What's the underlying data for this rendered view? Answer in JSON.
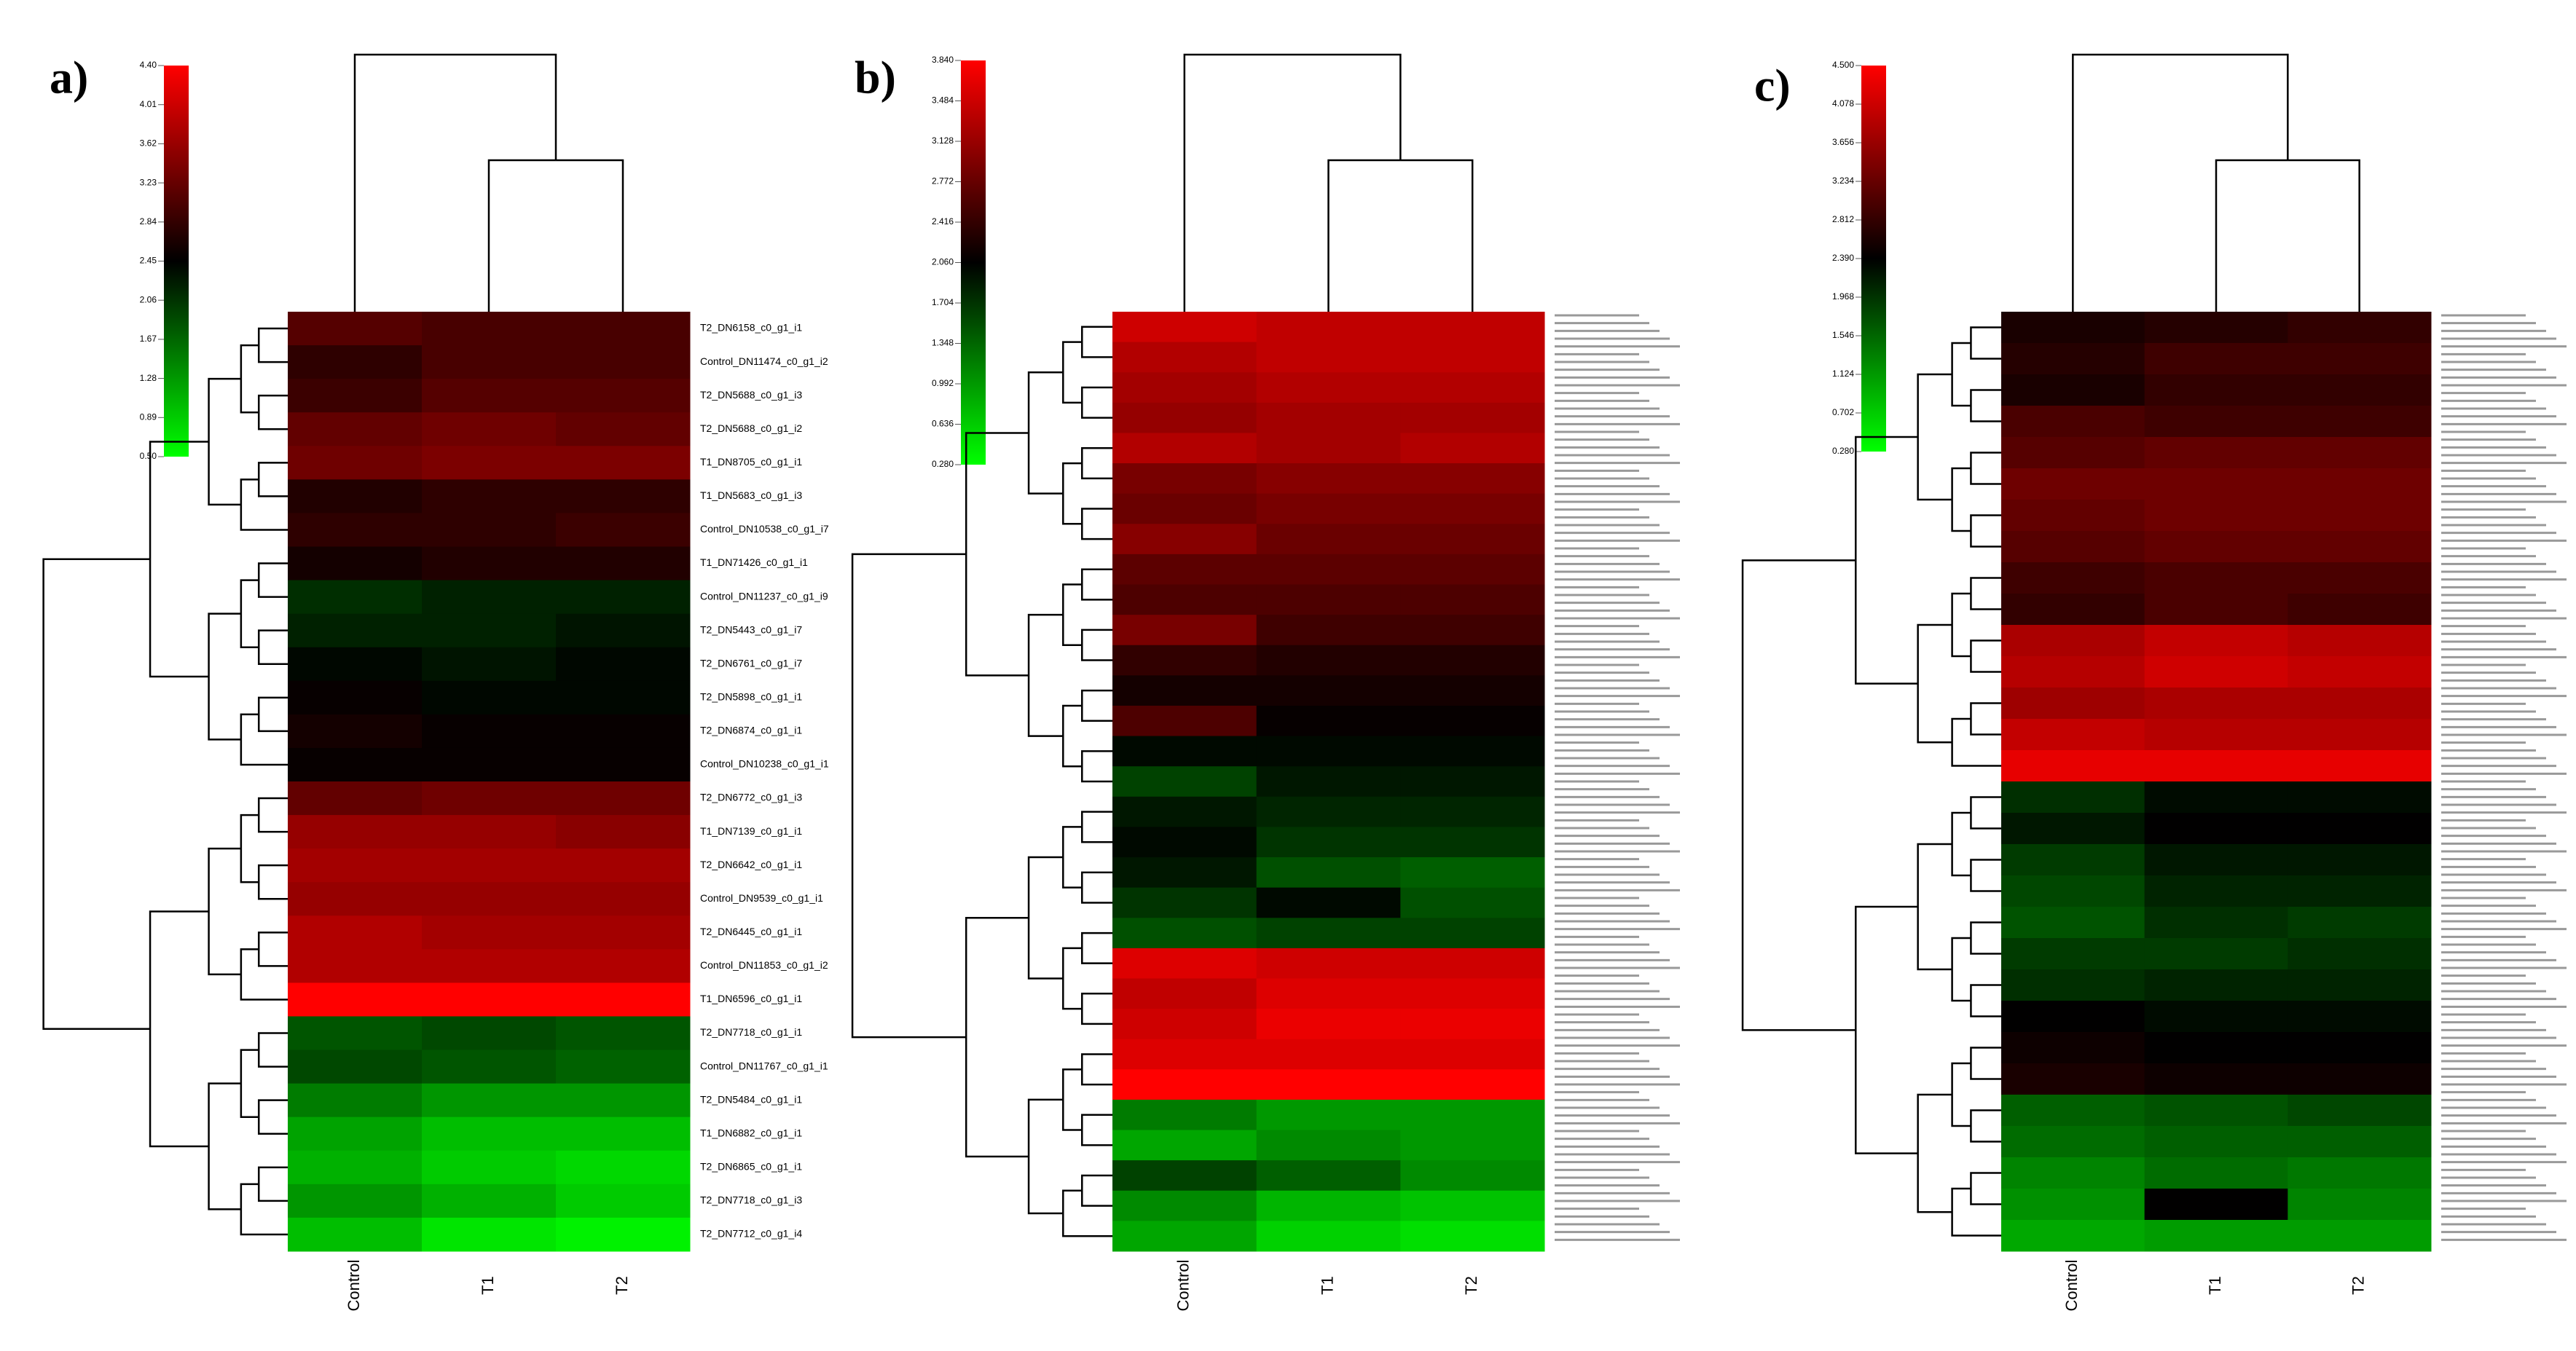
{
  "chart_data": [
    {
      "type": "heatmap",
      "panel_label": "a)",
      "columns": [
        "Control",
        "T1",
        "T2"
      ],
      "rows": [
        "T2_DN6158_c0_g1_i1",
        "Control_DN11474_c0_g1_i2",
        "T2_DN5688_c0_g1_i3",
        "T2_DN5688_c0_g1_i2",
        "T1_DN8705_c0_g1_i1",
        "T1_DN5683_c0_g1_i3",
        "Control_DN10538_c0_g1_i7",
        "T1_DN71426_c0_g1_i1",
        "Control_DN11237_c0_g1_i9",
        "T2_DN5443_c0_g1_i7",
        "T2_DN6761_c0_g1_i7",
        "T2_DN5898_c0_g1_i1",
        "T2_DN6874_c0_g1_i1",
        "Control_DN10238_c0_g1_i1",
        "T2_DN6772_c0_g1_i3",
        "T1_DN7139_c0_g1_i1",
        "T2_DN6642_c0_g1_i1",
        "Control_DN9539_c0_g1_i1",
        "T2_DN6445_c0_g1_i1",
        "Control_DN11853_c0_g1_i2",
        "T1_DN6596_c0_g1_i1",
        "T2_DN7718_c0_g1_i1",
        "Control_DN11767_c0_g1_i1",
        "T2_DN5484_c0_g1_i1",
        "T1_DN6882_c0_g1_i1",
        "T2_DN6865_c0_g1_i1",
        "T2_DN7718_c0_g1_i3",
        "T2_DN7712_c0_g1_i4"
      ],
      "values": [
        [
          3.1,
          3.0,
          3.0
        ],
        [
          2.8,
          3.0,
          3.0
        ],
        [
          2.9,
          3.1,
          3.1
        ],
        [
          3.2,
          3.3,
          3.2
        ],
        [
          3.3,
          3.4,
          3.4
        ],
        [
          2.7,
          2.8,
          2.8
        ],
        [
          2.8,
          2.8,
          2.9
        ],
        [
          2.6,
          2.7,
          2.7
        ],
        [
          2.1,
          2.2,
          2.2
        ],
        [
          2.2,
          2.2,
          2.3
        ],
        [
          2.4,
          2.3,
          2.4
        ],
        [
          2.5,
          2.4,
          2.4
        ],
        [
          2.6,
          2.5,
          2.5
        ],
        [
          2.5,
          2.5,
          2.5
        ],
        [
          3.2,
          3.3,
          3.3
        ],
        [
          3.6,
          3.6,
          3.5
        ],
        [
          3.7,
          3.7,
          3.7
        ],
        [
          3.6,
          3.6,
          3.6
        ],
        [
          3.8,
          3.7,
          3.7
        ],
        [
          3.8,
          3.8,
          3.8
        ],
        [
          4.4,
          4.4,
          4.4
        ],
        [
          1.8,
          1.9,
          1.8
        ],
        [
          1.9,
          1.8,
          1.7
        ],
        [
          1.5,
          1.3,
          1.3
        ],
        [
          1.2,
          1.0,
          1.0
        ],
        [
          1.1,
          0.9,
          0.8
        ],
        [
          1.3,
          1.1,
          0.9
        ],
        [
          1.0,
          0.7,
          0.6
        ]
      ],
      "clim": [
        0.5,
        4.4
      ],
      "cticks": [
        {
          "value": 0.5,
          "label": "0.50"
        },
        {
          "value": 0.89,
          "label": "0.89"
        },
        {
          "value": 1.28,
          "label": "1.28"
        },
        {
          "value": 1.67,
          "label": "1.67"
        },
        {
          "value": 2.06,
          "label": "2.06"
        },
        {
          "value": 2.45,
          "label": "2.45"
        },
        {
          "value": 2.84,
          "label": "2.84"
        },
        {
          "value": 3.23,
          "label": "3.23"
        },
        {
          "value": 3.62,
          "label": "3.62"
        },
        {
          "value": 4.01,
          "label": "4.01"
        },
        {
          "value": 4.4,
          "label": "4.40"
        }
      ]
    },
    {
      "type": "heatmap",
      "panel_label": "b)",
      "columns": [
        "Control",
        "T1",
        "T2"
      ],
      "values": [
        [
          3.5,
          3.4,
          3.4
        ],
        [
          3.3,
          3.4,
          3.4
        ],
        [
          3.2,
          3.3,
          3.3
        ],
        [
          3.1,
          3.2,
          3.2
        ],
        [
          3.3,
          3.2,
          3.3
        ],
        [
          2.9,
          3.0,
          3.0
        ],
        [
          2.8,
          2.9,
          2.9
        ],
        [
          3.0,
          2.8,
          2.8
        ],
        [
          2.7,
          2.7,
          2.7
        ],
        [
          2.6,
          2.6,
          2.6
        ],
        [
          2.9,
          2.5,
          2.5
        ],
        [
          2.4,
          2.3,
          2.3
        ],
        [
          2.2,
          2.2,
          2.2
        ],
        [
          2.6,
          2.1,
          2.1
        ],
        [
          2.0,
          2.0,
          2.0
        ],
        [
          1.6,
          1.9,
          1.9
        ],
        [
          1.9,
          1.8,
          1.8
        ],
        [
          2.0,
          1.7,
          1.7
        ],
        [
          1.9,
          1.5,
          1.4
        ],
        [
          1.7,
          2.0,
          1.5
        ],
        [
          1.5,
          1.6,
          1.6
        ],
        [
          3.6,
          3.5,
          3.5
        ],
        [
          3.4,
          3.6,
          3.6
        ],
        [
          3.5,
          3.7,
          3.7
        ],
        [
          3.6,
          3.6,
          3.6
        ],
        [
          3.84,
          3.84,
          3.84
        ],
        [
          1.2,
          1.0,
          1.0
        ],
        [
          0.9,
          1.1,
          1.0
        ],
        [
          1.6,
          1.4,
          1.1
        ],
        [
          1.1,
          0.8,
          0.7
        ],
        [
          0.9,
          0.6,
          0.5
        ]
      ],
      "clim": [
        0.28,
        3.84
      ],
      "cticks": [
        {
          "value": 0.28,
          "label": "0.280"
        },
        {
          "value": 0.636,
          "label": "0.636"
        },
        {
          "value": 0.992,
          "label": "0.992"
        },
        {
          "value": 1.348,
          "label": "1.348"
        },
        {
          "value": 1.704,
          "label": "1.704"
        },
        {
          "value": 2.06,
          "label": "2.060"
        },
        {
          "value": 2.416,
          "label": "2.416"
        },
        {
          "value": 2.772,
          "label": "2.772"
        },
        {
          "value": 3.128,
          "label": "3.128"
        },
        {
          "value": 3.484,
          "label": "3.484"
        },
        {
          "value": 3.84,
          "label": "3.840"
        }
      ]
    },
    {
      "type": "heatmap",
      "panel_label": "c)",
      "columns": [
        "Control",
        "T1",
        "T2"
      ],
      "values": [
        [
          2.6,
          2.7,
          2.8
        ],
        [
          2.7,
          2.9,
          2.9
        ],
        [
          2.6,
          2.8,
          2.8
        ],
        [
          3.0,
          2.9,
          2.9
        ],
        [
          3.1,
          3.2,
          3.2
        ],
        [
          3.3,
          3.3,
          3.3
        ],
        [
          3.2,
          3.3,
          3.3
        ],
        [
          3.1,
          3.2,
          3.2
        ],
        [
          2.9,
          3.0,
          3.0
        ],
        [
          2.8,
          3.0,
          2.9
        ],
        [
          3.8,
          4.0,
          3.9
        ],
        [
          3.9,
          4.1,
          4.0
        ],
        [
          3.7,
          3.8,
          3.8
        ],
        [
          4.0,
          3.9,
          3.9
        ],
        [
          4.3,
          4.3,
          4.3
        ],
        [
          2.0,
          2.3,
          2.3
        ],
        [
          2.2,
          2.4,
          2.4
        ],
        [
          1.9,
          2.2,
          2.2
        ],
        [
          1.8,
          2.1,
          2.1
        ],
        [
          1.7,
          2.0,
          1.9
        ],
        [
          1.9,
          1.9,
          2.0
        ],
        [
          2.0,
          2.1,
          2.1
        ],
        [
          2.4,
          2.3,
          2.3
        ],
        [
          2.5,
          2.4,
          2.4
        ],
        [
          2.6,
          2.5,
          2.5
        ],
        [
          1.6,
          1.7,
          1.8
        ],
        [
          1.5,
          1.6,
          1.6
        ],
        [
          1.3,
          1.5,
          1.4
        ],
        [
          1.2,
          2.4,
          1.3
        ],
        [
          1.0,
          1.1,
          1.1
        ]
      ],
      "clim": [
        0.28,
        4.5
      ],
      "cticks": [
        {
          "value": 0.28,
          "label": "0.280"
        },
        {
          "value": 0.702,
          "label": "0.702"
        },
        {
          "value": 1.124,
          "label": "1.124"
        },
        {
          "value": 1.546,
          "label": "1.546"
        },
        {
          "value": 1.968,
          "label": "1.968"
        },
        {
          "value": 2.39,
          "label": "2.390"
        },
        {
          "value": 2.812,
          "label": "2.812"
        },
        {
          "value": 3.234,
          "label": "3.234"
        },
        {
          "value": 3.656,
          "label": "3.656"
        },
        {
          "value": 4.078,
          "label": "4.078"
        },
        {
          "value": 4.5,
          "label": "4.500"
        }
      ]
    }
  ]
}
